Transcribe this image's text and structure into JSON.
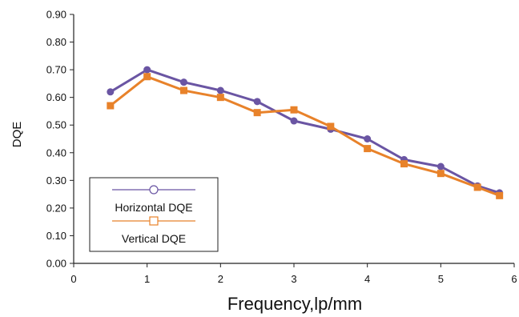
{
  "chart_data": {
    "type": "line",
    "title": "",
    "xlabel": "Frequency,lp/mm",
    "ylabel": "DQE",
    "xlim": [
      0,
      6
    ],
    "ylim": [
      0,
      0.9
    ],
    "x_ticks": [
      "0",
      "1",
      "2",
      "3",
      "4",
      "5",
      "6"
    ],
    "y_ticks": [
      "0.00",
      "0.10",
      "0.20",
      "0.30",
      "0.40",
      "0.50",
      "0.60",
      "0.70",
      "0.80",
      "0.90"
    ],
    "grid": false,
    "legend_position": "bottom-left",
    "series": [
      {
        "name": "Horizontal DQE",
        "color": "#6a55a3",
        "marker": "circle",
        "x": [
          0.5,
          1.0,
          1.5,
          2.0,
          2.5,
          3.0,
          3.5,
          4.0,
          4.5,
          5.0,
          5.5,
          5.8
        ],
        "y": [
          0.62,
          0.7,
          0.655,
          0.625,
          0.585,
          0.515,
          0.485,
          0.45,
          0.375,
          0.35,
          0.28,
          0.255
        ]
      },
      {
        "name": "Vertical DQE",
        "color": "#e8822a",
        "marker": "square",
        "x": [
          0.5,
          1.0,
          1.5,
          2.0,
          2.5,
          3.0,
          3.5,
          4.0,
          4.5,
          5.0,
          5.5,
          5.8
        ],
        "y": [
          0.57,
          0.675,
          0.625,
          0.6,
          0.545,
          0.555,
          0.495,
          0.415,
          0.36,
          0.325,
          0.275,
          0.245
        ]
      }
    ]
  }
}
